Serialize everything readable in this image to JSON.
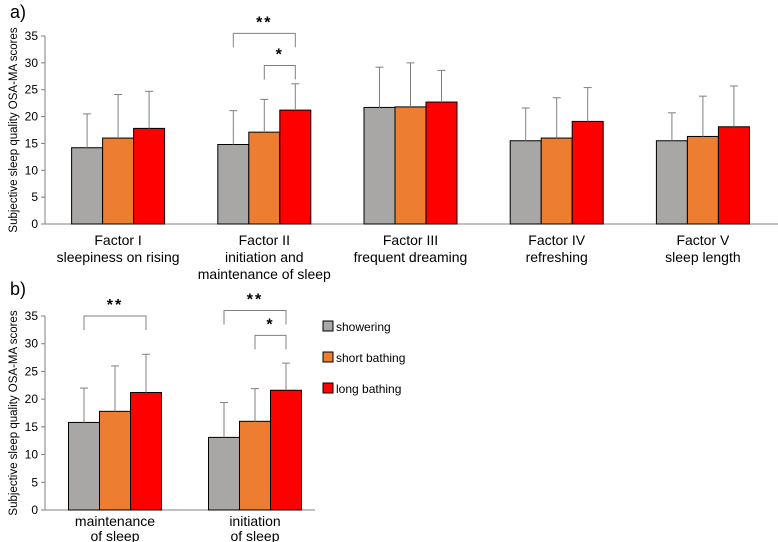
{
  "colors": {
    "showering": "#a9a6a6",
    "short_bathing": "#ed7d31",
    "long_bathing": "#ff0000",
    "axis": "#808080",
    "errorbar": "#808080"
  },
  "chart_data": [
    {
      "panel_label": "a)",
      "type": "bar",
      "ylabel": "Subjective sleep quality OSA-MA scores",
      "ylim": [
        0,
        35
      ],
      "yticks": [
        0,
        5,
        10,
        15,
        20,
        25,
        30,
        35
      ],
      "categories": [
        [
          "Factor I",
          "sleepiness on rising"
        ],
        [
          "Factor II",
          "initiation and",
          "maintenance of sleep"
        ],
        [
          "Factor III",
          "frequent dreaming"
        ],
        [
          "Factor IV",
          "refreshing"
        ],
        [
          "Factor V",
          "sleep length"
        ]
      ],
      "series": [
        {
          "name": "showering",
          "values": [
            14.2,
            14.8,
            21.7,
            15.5,
            15.5
          ],
          "errors": [
            6.3,
            6.3,
            7.5,
            6.1,
            5.2
          ]
        },
        {
          "name": "short bathing",
          "values": [
            16.0,
            17.1,
            21.8,
            16.0,
            16.3
          ],
          "errors": [
            8.1,
            6.1,
            8.2,
            7.5,
            7.5
          ]
        },
        {
          "name": "long bathing",
          "values": [
            17.8,
            21.2,
            22.7,
            19.1,
            18.1
          ],
          "errors": [
            6.9,
            4.9,
            5.9,
            6.3,
            7.6
          ]
        }
      ],
      "significance": [
        {
          "category": 1,
          "from": 0,
          "to": 2,
          "label": "**",
          "level": 35.5
        },
        {
          "category": 1,
          "from": 1,
          "to": 2,
          "label": "*",
          "level": 29.5
        }
      ]
    },
    {
      "panel_label": "b)",
      "type": "bar",
      "ylabel": "Subjective sleep quality OSA-MA scores",
      "ylim": [
        0,
        35
      ],
      "yticks": [
        0,
        5,
        10,
        15,
        20,
        25,
        30,
        35
      ],
      "categories": [
        [
          "maintenance",
          "of sleep"
        ],
        [
          "initiation",
          "of sleep"
        ]
      ],
      "series": [
        {
          "name": "showering",
          "values": [
            15.8,
            13.1
          ],
          "errors": [
            6.2,
            6.3
          ]
        },
        {
          "name": "short bathing",
          "values": [
            17.8,
            16.0
          ],
          "errors": [
            8.2,
            5.9
          ]
        },
        {
          "name": "long bathing",
          "values": [
            21.2,
            21.6
          ],
          "errors": [
            6.9,
            4.9
          ]
        }
      ],
      "legend": [
        "showering",
        "short bathing",
        "long bathing"
      ],
      "significance": [
        {
          "category": 0,
          "from": 0,
          "to": 2,
          "label": "**",
          "level": 35
        },
        {
          "category": 1,
          "from": 0,
          "to": 2,
          "label": "**",
          "level": 36
        },
        {
          "category": 1,
          "from": 1,
          "to": 2,
          "label": "*",
          "level": 31.5
        }
      ]
    }
  ]
}
